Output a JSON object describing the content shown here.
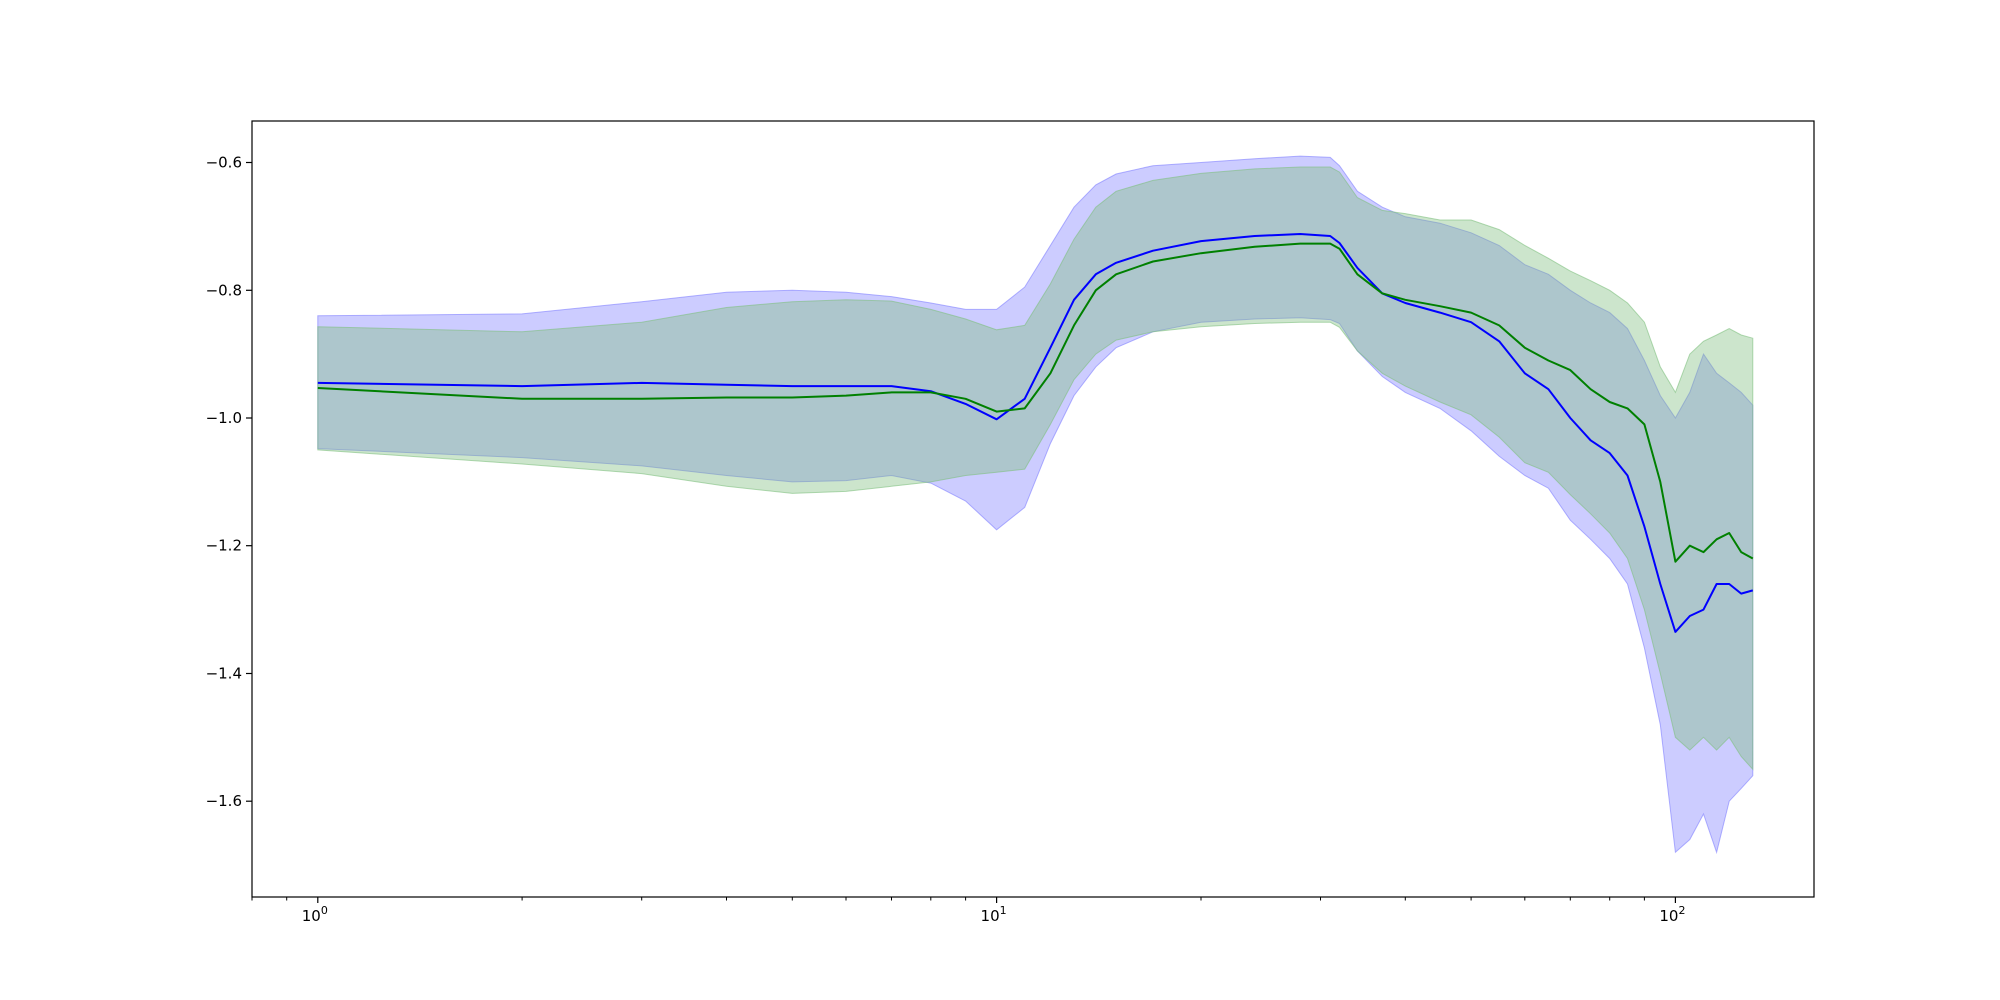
{
  "chart_data": {
    "type": "area",
    "title": "",
    "xlabel": "",
    "ylabel": "",
    "xscale": "log",
    "xlim": [
      0.8,
      160
    ],
    "ylim": [
      -1.75,
      -0.535
    ],
    "grid": false,
    "x_ticks": [
      {
        "value": 1,
        "base": "10",
        "exp": "0"
      },
      {
        "value": 10,
        "base": "10",
        "exp": "1"
      },
      {
        "value": 100,
        "base": "10",
        "exp": "2"
      }
    ],
    "y_ticks": [
      {
        "value": -0.6,
        "label": "−0.6"
      },
      {
        "value": -0.8,
        "label": "−0.8"
      },
      {
        "value": -1.0,
        "label": "−1.0"
      },
      {
        "value": -1.2,
        "label": "−1.2"
      },
      {
        "value": -1.4,
        "label": "−1.4"
      },
      {
        "value": -1.6,
        "label": "−1.6"
      }
    ],
    "series": [
      {
        "color": "#0000ff",
        "band_color": "#7f7fff",
        "x": [
          1,
          2,
          3,
          4,
          5,
          6,
          7,
          8,
          9,
          10,
          11,
          12,
          13,
          14,
          15,
          17,
          20,
          24,
          28,
          31,
          32,
          34,
          37,
          40,
          45,
          50,
          55,
          60,
          65,
          70,
          75,
          80,
          85,
          90,
          95,
          100,
          105,
          110,
          115,
          120,
          125,
          130
        ],
        "mean": [
          -0.945,
          -0.95,
          -0.945,
          -0.948,
          -0.95,
          -0.95,
          -0.95,
          -0.958,
          -0.978,
          -1.002,
          -0.97,
          -0.89,
          -0.815,
          -0.775,
          -0.757,
          -0.738,
          -0.723,
          -0.715,
          -0.712,
          -0.715,
          -0.726,
          -0.765,
          -0.805,
          -0.82,
          -0.835,
          -0.85,
          -0.88,
          -0.93,
          -0.955,
          -1.0,
          -1.035,
          -1.055,
          -1.09,
          -1.17,
          -1.26,
          -1.335,
          -1.31,
          -1.3,
          -1.26,
          -1.26,
          -1.275,
          -1.27
        ],
        "upper": [
          -0.84,
          -0.837,
          -0.818,
          -0.803,
          -0.8,
          -0.803,
          -0.81,
          -0.82,
          -0.83,
          -0.83,
          -0.795,
          -0.73,
          -0.67,
          -0.635,
          -0.618,
          -0.605,
          -0.6,
          -0.594,
          -0.59,
          -0.592,
          -0.605,
          -0.645,
          -0.67,
          -0.685,
          -0.695,
          -0.71,
          -0.73,
          -0.76,
          -0.775,
          -0.8,
          -0.82,
          -0.835,
          -0.86,
          -0.91,
          -0.965,
          -1.0,
          -0.96,
          -0.9,
          -0.93,
          -0.945,
          -0.96,
          -0.98
        ],
        "lower": [
          -1.048,
          -1.062,
          -1.075,
          -1.09,
          -1.1,
          -1.098,
          -1.09,
          -1.102,
          -1.13,
          -1.175,
          -1.14,
          -1.04,
          -0.965,
          -0.92,
          -0.89,
          -0.865,
          -0.85,
          -0.845,
          -0.843,
          -0.846,
          -0.852,
          -0.895,
          -0.935,
          -0.96,
          -0.985,
          -1.02,
          -1.06,
          -1.09,
          -1.11,
          -1.16,
          -1.19,
          -1.22,
          -1.26,
          -1.36,
          -1.48,
          -1.68,
          -1.66,
          -1.62,
          -1.68,
          -1.6,
          -1.58,
          -1.56
        ]
      },
      {
        "color": "#008000",
        "band_color": "#7fbf7f",
        "x": [
          1,
          2,
          3,
          4,
          5,
          6,
          7,
          8,
          9,
          10,
          11,
          12,
          13,
          14,
          15,
          17,
          20,
          24,
          28,
          31,
          32,
          34,
          37,
          40,
          45,
          50,
          55,
          60,
          65,
          70,
          75,
          80,
          85,
          90,
          95,
          100,
          105,
          110,
          115,
          120,
          125,
          130
        ],
        "mean": [
          -0.953,
          -0.97,
          -0.97,
          -0.968,
          -0.968,
          -0.965,
          -0.96,
          -0.96,
          -0.97,
          -0.99,
          -0.985,
          -0.93,
          -0.855,
          -0.8,
          -0.775,
          -0.755,
          -0.742,
          -0.732,
          -0.727,
          -0.727,
          -0.735,
          -0.775,
          -0.805,
          -0.815,
          -0.825,
          -0.835,
          -0.855,
          -0.89,
          -0.91,
          -0.925,
          -0.955,
          -0.975,
          -0.985,
          -1.01,
          -1.1,
          -1.225,
          -1.2,
          -1.21,
          -1.19,
          -1.18,
          -1.21,
          -1.22
        ],
        "upper": [
          -0.857,
          -0.865,
          -0.85,
          -0.827,
          -0.818,
          -0.815,
          -0.817,
          -0.83,
          -0.845,
          -0.862,
          -0.855,
          -0.79,
          -0.72,
          -0.67,
          -0.645,
          -0.628,
          -0.617,
          -0.61,
          -0.607,
          -0.607,
          -0.615,
          -0.655,
          -0.675,
          -0.68,
          -0.69,
          -0.69,
          -0.705,
          -0.73,
          -0.75,
          -0.77,
          -0.785,
          -0.8,
          -0.82,
          -0.85,
          -0.92,
          -0.96,
          -0.9,
          -0.88,
          -0.87,
          -0.86,
          -0.87,
          -0.875
        ],
        "lower": [
          -1.05,
          -1.072,
          -1.087,
          -1.107,
          -1.118,
          -1.115,
          -1.107,
          -1.1,
          -1.09,
          -1.085,
          -1.08,
          -1.01,
          -0.94,
          -0.9,
          -0.878,
          -0.865,
          -0.857,
          -0.852,
          -0.85,
          -0.85,
          -0.858,
          -0.895,
          -0.93,
          -0.95,
          -0.975,
          -0.995,
          -1.03,
          -1.07,
          -1.085,
          -1.12,
          -1.15,
          -1.18,
          -1.22,
          -1.3,
          -1.4,
          -1.5,
          -1.52,
          -1.5,
          -1.52,
          -1.5,
          -1.53,
          -1.55
        ]
      }
    ]
  }
}
